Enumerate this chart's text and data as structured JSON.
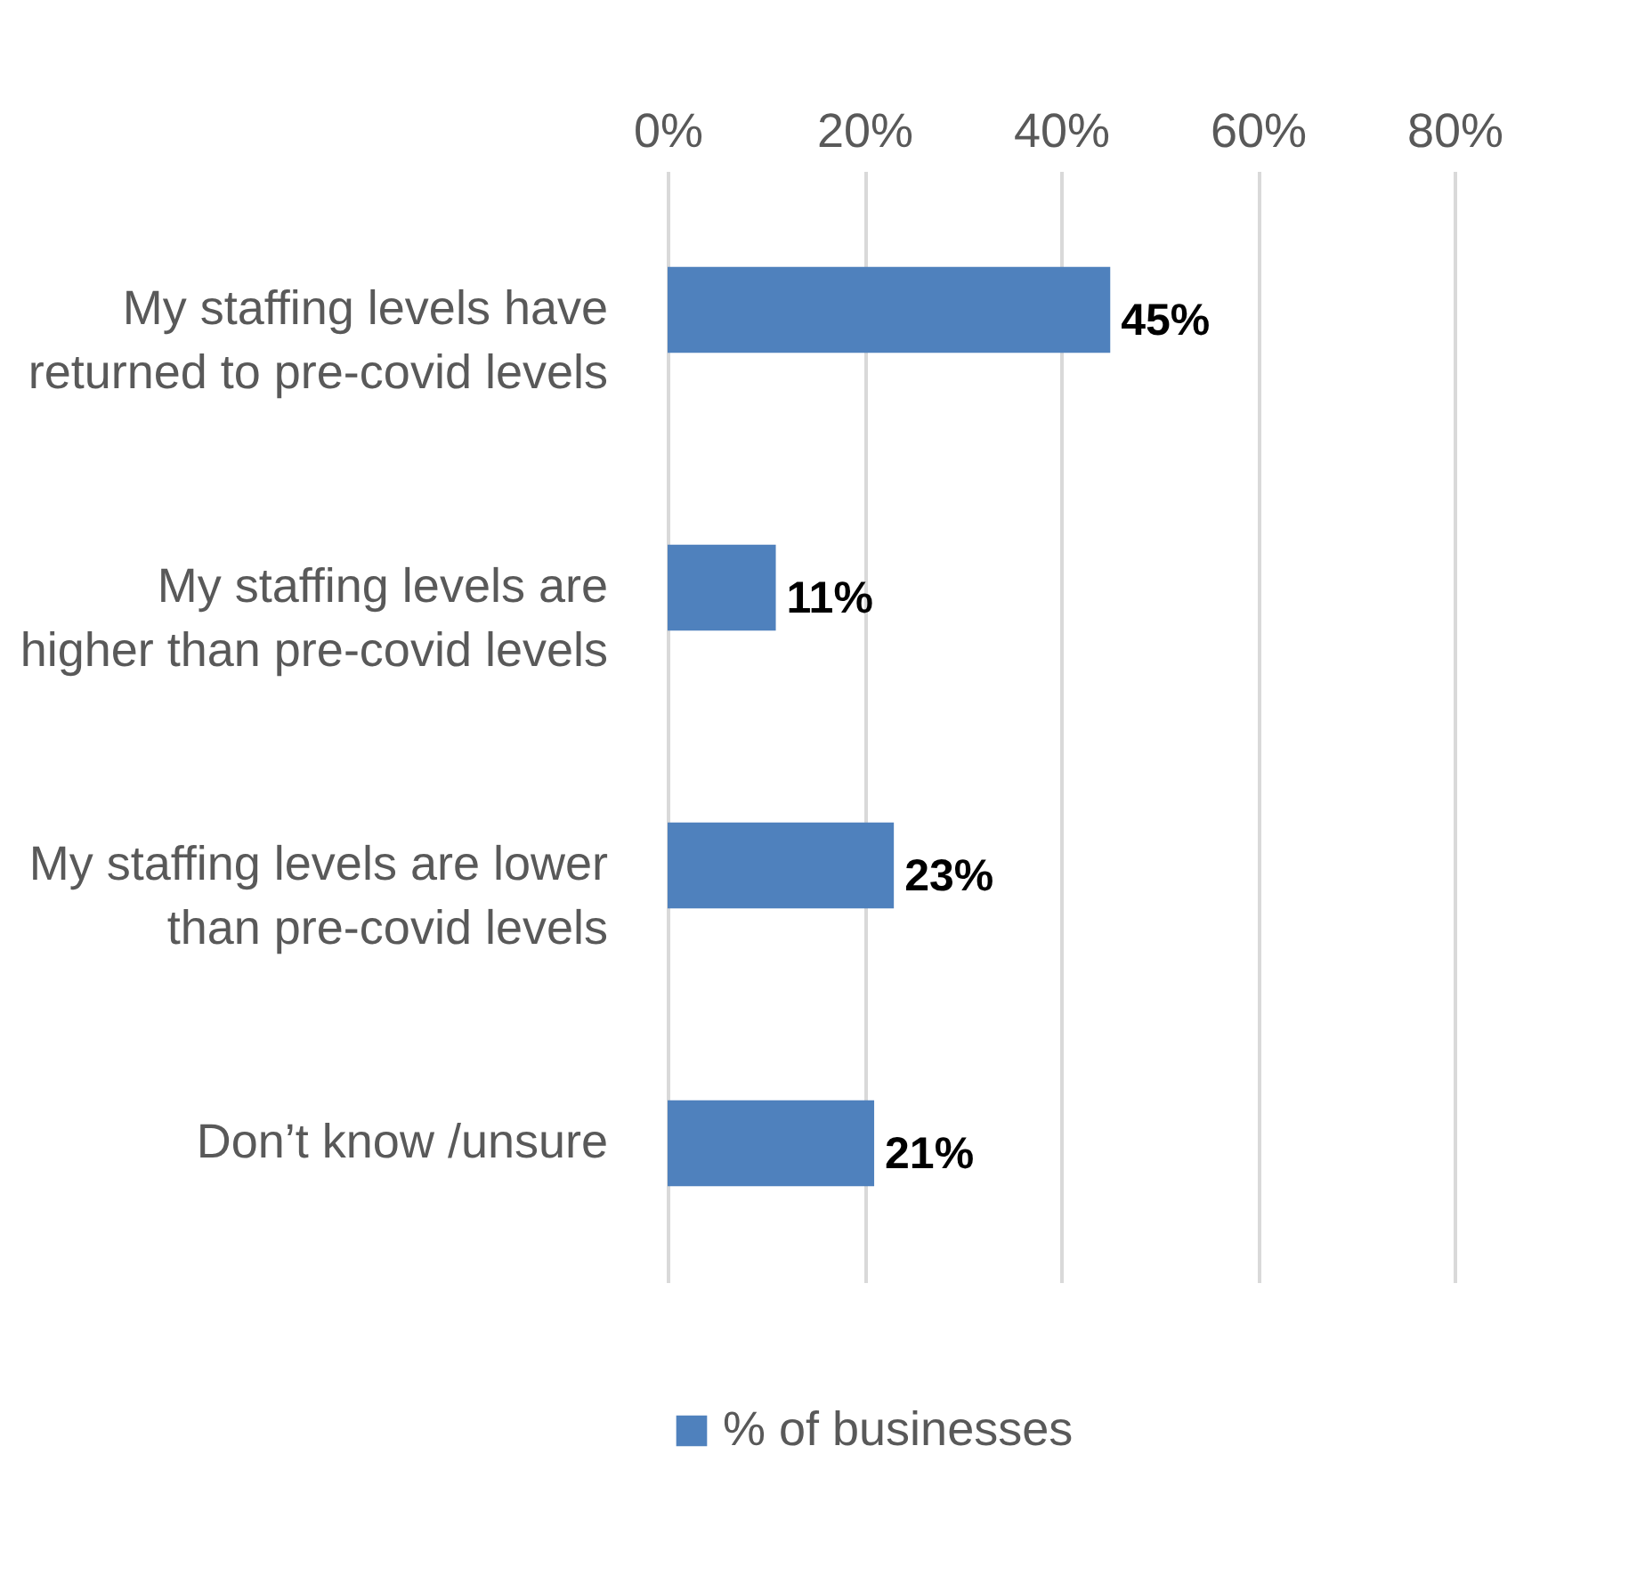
{
  "chart_data": {
    "type": "bar",
    "orientation": "horizontal",
    "categories": [
      "My staffing levels have returned to pre-covid levels",
      "My staffing levels are higher than pre-covid levels",
      "My staffing levels are lower than pre-covid levels",
      "Don’t know /unsure"
    ],
    "series": [
      {
        "name": "% of businesses",
        "color": "#4f81bd",
        "values": [
          45,
          11,
          23,
          21
        ]
      }
    ],
    "value_labels": [
      "45%",
      "11%",
      "23%",
      "21%"
    ],
    "xlim": [
      0,
      80
    ],
    "xticks": [
      {
        "value": 0,
        "label": "0%"
      },
      {
        "value": 20,
        "label": "20%"
      },
      {
        "value": 40,
        "label": "40%"
      },
      {
        "value": 60,
        "label": "60%"
      },
      {
        "value": 80,
        "label": "80%"
      }
    ],
    "grid": "x",
    "legend": "bottom"
  }
}
